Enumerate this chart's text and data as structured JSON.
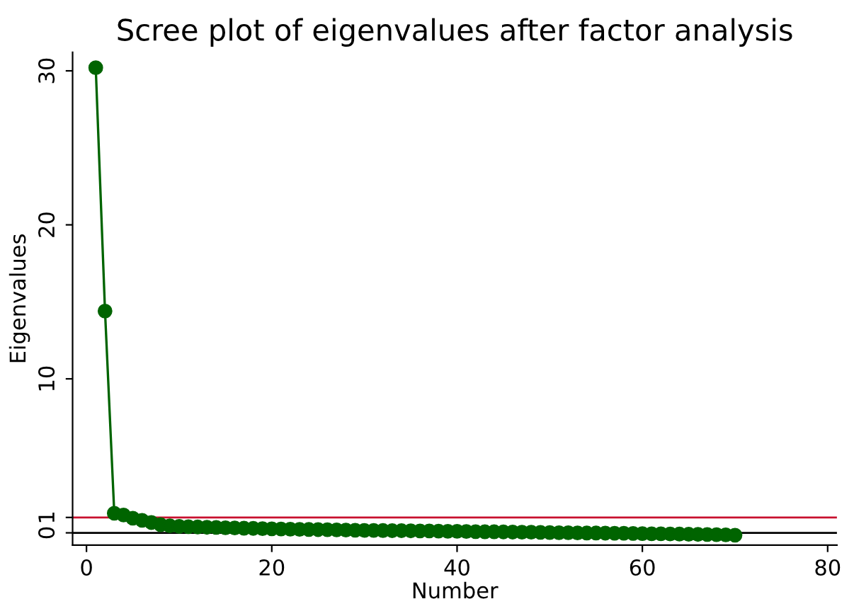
{
  "chart_data": {
    "type": "line",
    "title": "Scree plot of eigenvalues after factor analysis",
    "xlabel": "Number",
    "ylabel": "Eigenvalues",
    "x": [
      1,
      2,
      3,
      4,
      5,
      6,
      7,
      8,
      9,
      10,
      11,
      12,
      13,
      14,
      15,
      16,
      17,
      18,
      19,
      20,
      21,
      22,
      23,
      24,
      25,
      26,
      27,
      28,
      29,
      30,
      31,
      32,
      33,
      34,
      35,
      36,
      37,
      38,
      39,
      40,
      41,
      42,
      43,
      44,
      45,
      46,
      47,
      48,
      49,
      50,
      51,
      52,
      53,
      54,
      55,
      56,
      57,
      58,
      59,
      60,
      61,
      62,
      63,
      64,
      65,
      66,
      67,
      68,
      69,
      70
    ],
    "series": [
      {
        "color": "#006400",
        "values": [
          30.2,
          14.4,
          1.27,
          1.16,
          0.95,
          0.81,
          0.67,
          0.53,
          0.46,
          0.42,
          0.4,
          0.38,
          0.36,
          0.35,
          0.33,
          0.32,
          0.3,
          0.29,
          0.27,
          0.26,
          0.25,
          0.24,
          0.23,
          0.22,
          0.21,
          0.2,
          0.19,
          0.18,
          0.17,
          0.16,
          0.16,
          0.15,
          0.14,
          0.14,
          0.13,
          0.12,
          0.12,
          0.11,
          0.1,
          0.1,
          0.09,
          0.08,
          0.07,
          0.07,
          0.06,
          0.05,
          0.04,
          0.04,
          0.03,
          0.02,
          0.01,
          0.01,
          0.0,
          -0.01,
          -0.01,
          -0.02,
          -0.03,
          -0.03,
          -0.04,
          -0.05,
          -0.06,
          -0.06,
          -0.07,
          -0.08,
          -0.09,
          -0.1,
          -0.11,
          -0.12,
          -0.13,
          -0.15
        ]
      }
    ],
    "marker": "circle",
    "line_style": "solid",
    "xlim": [
      -1.5,
      81
    ],
    "xticks": [
      0,
      20,
      40,
      60,
      80
    ],
    "ylim": [
      -0.8,
      31.2
    ],
    "yticks": [
      0,
      1,
      10,
      20,
      30
    ],
    "ref_lines": [
      {
        "axis": "y",
        "value": 1,
        "color": "#c8102e"
      },
      {
        "axis": "y",
        "value": 0,
        "color": "#000000"
      }
    ],
    "grid": false,
    "legend": false
  }
}
